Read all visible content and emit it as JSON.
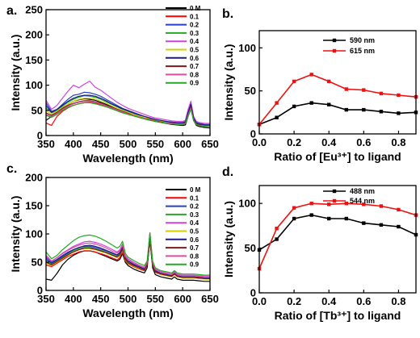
{
  "chart_data": [
    {
      "id": "a",
      "type": "line",
      "panel_label": "a.",
      "xlabel": "Wavelength (nm)",
      "ylabel": "Intensity (a.u.)",
      "xlim": [
        350,
        650
      ],
      "ylim": [
        0,
        250
      ],
      "xticks": [
        350,
        400,
        450,
        500,
        550,
        600,
        650
      ],
      "yticks": [
        0,
        50,
        100,
        150,
        200,
        250
      ],
      "legend_position": "top-right",
      "x": [
        350,
        360,
        370,
        380,
        390,
        400,
        410,
        420,
        430,
        440,
        450,
        460,
        470,
        480,
        490,
        500,
        510,
        520,
        530,
        540,
        550,
        560,
        570,
        580,
        590,
        600,
        605,
        610,
        615,
        620,
        625,
        630,
        640,
        650
      ],
      "series": [
        {
          "name": "0 M",
          "color": "#000000",
          "values": [
            30,
            38,
            45,
            54,
            62,
            68,
            71,
            73,
            72,
            70,
            66,
            62,
            57,
            52,
            48,
            44,
            40,
            37,
            34,
            31,
            28,
            26,
            24,
            22,
            21,
            20,
            21,
            38,
            55,
            30,
            20,
            18,
            16,
            15
          ]
        },
        {
          "name": "0.1",
          "color": "#ff0000",
          "values": [
            25,
            20,
            38,
            48,
            55,
            60,
            63,
            65,
            66,
            64,
            62,
            58,
            54,
            50,
            46,
            42,
            39,
            36,
            33,
            31,
            28,
            26,
            24,
            23,
            22,
            22,
            24,
            40,
            58,
            32,
            22,
            20,
            19,
            20
          ]
        },
        {
          "name": "0.2",
          "color": "#2a3fc8",
          "values": [
            65,
            48,
            52,
            62,
            72,
            80,
            82,
            86,
            85,
            82,
            78,
            72,
            66,
            60,
            54,
            50,
            46,
            42,
            38,
            35,
            32,
            30,
            28,
            27,
            26,
            26,
            28,
            48,
            65,
            36,
            26,
            24,
            22,
            22
          ]
        },
        {
          "name": "0.3",
          "color": "#2aa52a",
          "values": [
            55,
            45,
            50,
            58,
            66,
            72,
            76,
            79,
            78,
            76,
            72,
            67,
            62,
            57,
            52,
            48,
            44,
            40,
            37,
            34,
            31,
            29,
            27,
            26,
            25,
            25,
            27,
            44,
            62,
            34,
            25,
            23,
            21,
            21
          ]
        },
        {
          "name": "0.4",
          "color": "#cc44dd",
          "values": [
            70,
            52,
            60,
            74,
            88,
            100,
            95,
            102,
            108,
            96,
            90,
            82,
            74,
            66,
            60,
            54,
            50,
            46,
            42,
            38,
            35,
            33,
            31,
            29,
            28,
            28,
            30,
            52,
            68,
            38,
            28,
            26,
            24,
            24
          ]
        },
        {
          "name": "0.5",
          "color": "#d1d100",
          "values": [
            50,
            42,
            48,
            56,
            62,
            68,
            72,
            74,
            74,
            72,
            68,
            64,
            59,
            54,
            50,
            46,
            42,
            39,
            36,
            33,
            30,
            28,
            26,
            25,
            24,
            24,
            26,
            42,
            60,
            33,
            24,
            22,
            20,
            20
          ]
        },
        {
          "name": "0.6",
          "color": "#1a1a8c",
          "values": [
            60,
            46,
            52,
            60,
            68,
            74,
            78,
            80,
            80,
            78,
            74,
            69,
            63,
            58,
            53,
            49,
            45,
            41,
            38,
            35,
            32,
            30,
            28,
            26,
            25,
            25,
            27,
            46,
            62,
            35,
            25,
            23,
            21,
            21
          ]
        },
        {
          "name": "0.7",
          "color": "#7a1a1a",
          "values": [
            45,
            40,
            46,
            54,
            60,
            64,
            67,
            69,
            69,
            67,
            64,
            60,
            56,
            52,
            48,
            44,
            40,
            37,
            34,
            32,
            29,
            27,
            25,
            24,
            23,
            23,
            25,
            40,
            56,
            31,
            23,
            21,
            19,
            19
          ]
        },
        {
          "name": "0.8",
          "color": "#e04aa0",
          "values": [
            42,
            38,
            44,
            52,
            58,
            63,
            66,
            68,
            68,
            66,
            63,
            59,
            55,
            51,
            47,
            43,
            40,
            37,
            34,
            31,
            28,
            26,
            25,
            24,
            23,
            23,
            24,
            40,
            54,
            30,
            22,
            20,
            19,
            19
          ]
        },
        {
          "name": "0.9",
          "color": "#22aa22",
          "values": [
            40,
            36,
            42,
            50,
            56,
            60,
            63,
            65,
            65,
            63,
            60,
            57,
            53,
            49,
            45,
            42,
            39,
            36,
            33,
            30,
            28,
            26,
            24,
            23,
            22,
            22,
            24,
            38,
            52,
            29,
            22,
            20,
            18,
            18
          ]
        }
      ]
    },
    {
      "id": "b",
      "type": "line",
      "panel_label": "b.",
      "xlabel": "Ratio of [Eu³⁺] to ligand",
      "ylabel": "Intensity (a.u.)",
      "xlim": [
        0,
        0.9
      ],
      "ylim": [
        0,
        120
      ],
      "xticks": [
        0.0,
        0.2,
        0.4,
        0.6,
        0.8
      ],
      "xtick_labels": [
        "0.0",
        "0.2",
        "0.4",
        "0.6",
        "0.8"
      ],
      "yticks": [
        0,
        50,
        100
      ],
      "legend_position": "top-right",
      "x": [
        0.0,
        0.1,
        0.2,
        0.3,
        0.4,
        0.5,
        0.6,
        0.7,
        0.8,
        0.9
      ],
      "series": [
        {
          "name": "590 nm",
          "color": "#000000",
          "values": [
            11,
            19,
            32,
            36,
            34,
            28,
            28,
            26,
            24,
            25
          ]
        },
        {
          "name": "615 nm",
          "color": "#ee1111",
          "values": [
            11,
            36,
            61,
            69,
            61,
            52,
            51,
            47,
            45,
            43
          ]
        }
      ]
    },
    {
      "id": "c",
      "type": "line",
      "panel_label": "c.",
      "xlabel": "Wavelength (nm)",
      "ylabel": "Intensity (a.u.)",
      "xlim": [
        350,
        650
      ],
      "ylim": [
        0,
        200
      ],
      "xticks": [
        350,
        400,
        450,
        500,
        550,
        600,
        650
      ],
      "yticks": [
        0,
        50,
        100,
        150,
        200
      ],
      "legend_position": "top-right",
      "x": [
        350,
        360,
        370,
        380,
        390,
        400,
        410,
        420,
        430,
        440,
        450,
        460,
        470,
        480,
        485,
        490,
        495,
        500,
        510,
        520,
        530,
        535,
        540,
        545,
        550,
        560,
        570,
        580,
        585,
        590,
        600,
        610,
        620,
        630,
        640,
        650
      ],
      "series": [
        {
          "name": "0 M",
          "color": "#000000",
          "values": [
            20,
            18,
            30,
            45,
            55,
            62,
            67,
            70,
            70,
            68,
            64,
            60,
            56,
            52,
            55,
            65,
            50,
            44,
            38,
            34,
            31,
            40,
            88,
            40,
            28,
            24,
            22,
            20,
            24,
            20,
            18,
            18,
            18,
            17,
            16,
            16
          ]
        },
        {
          "name": "0.1",
          "color": "#ff0000",
          "values": [
            45,
            42,
            48,
            54,
            60,
            64,
            68,
            70,
            70,
            68,
            65,
            62,
            58,
            54,
            58,
            70,
            52,
            47,
            42,
            38,
            35,
            45,
            98,
            45,
            32,
            28,
            26,
            24,
            28,
            24,
            22,
            22,
            22,
            21,
            20,
            20
          ]
        },
        {
          "name": "0.2",
          "color": "#2a3fc8",
          "values": [
            58,
            50,
            55,
            62,
            68,
            72,
            76,
            78,
            78,
            76,
            73,
            70,
            66,
            62,
            66,
            76,
            58,
            52,
            47,
            42,
            38,
            48,
            100,
            48,
            35,
            30,
            28,
            26,
            30,
            26,
            24,
            24,
            24,
            23,
            22,
            22
          ]
        },
        {
          "name": "0.3",
          "color": "#2aa52a",
          "values": [
            52,
            46,
            52,
            58,
            64,
            70,
            74,
            76,
            76,
            74,
            71,
            68,
            64,
            60,
            64,
            74,
            56,
            50,
            45,
            40,
            37,
            46,
            96,
            46,
            34,
            29,
            27,
            25,
            29,
            25,
            23,
            23,
            23,
            22,
            21,
            21
          ]
        },
        {
          "name": "0.4",
          "color": "#cc44dd",
          "values": [
            62,
            52,
            58,
            66,
            72,
            78,
            82,
            86,
            87,
            85,
            82,
            78,
            73,
            68,
            72,
            82,
            62,
            56,
            50,
            45,
            41,
            50,
            102,
            50,
            38,
            33,
            31,
            29,
            33,
            29,
            27,
            27,
            27,
            26,
            25,
            25
          ]
        },
        {
          "name": "0.5",
          "color": "#d1d100",
          "values": [
            48,
            44,
            50,
            56,
            62,
            68,
            72,
            74,
            74,
            72,
            69,
            66,
            62,
            58,
            62,
            72,
            54,
            48,
            43,
            39,
            36,
            45,
            94,
            45,
            33,
            28,
            26,
            24,
            28,
            24,
            22,
            22,
            22,
            21,
            20,
            20
          ]
        },
        {
          "name": "0.6",
          "color": "#1a1a8c",
          "values": [
            55,
            48,
            54,
            60,
            66,
            72,
            76,
            79,
            80,
            78,
            75,
            71,
            67,
            63,
            67,
            77,
            58,
            52,
            46,
            42,
            38,
            47,
            99,
            47,
            35,
            30,
            28,
            26,
            30,
            26,
            24,
            24,
            24,
            23,
            22,
            22
          ]
        },
        {
          "name": "0.7",
          "color": "#7a1a1a",
          "values": [
            50,
            45,
            51,
            57,
            63,
            68,
            72,
            75,
            75,
            73,
            70,
            67,
            63,
            59,
            63,
            73,
            55,
            49,
            44,
            40,
            36,
            45,
            95,
            45,
            33,
            29,
            27,
            25,
            29,
            25,
            23,
            23,
            23,
            22,
            21,
            21
          ]
        },
        {
          "name": "0.8",
          "color": "#e04aa0",
          "values": [
            60,
            52,
            58,
            65,
            71,
            76,
            80,
            83,
            84,
            82,
            79,
            75,
            70,
            66,
            70,
            80,
            60,
            54,
            48,
            44,
            40,
            49,
            101,
            49,
            37,
            32,
            30,
            28,
            32,
            28,
            26,
            26,
            26,
            25,
            24,
            24
          ]
        },
        {
          "name": "0.9",
          "color": "#22aa22",
          "values": [
            68,
            56,
            62,
            72,
            80,
            88,
            94,
            97,
            98,
            96,
            92,
            87,
            81,
            75,
            78,
            87,
            66,
            59,
            53,
            48,
            44,
            52,
            102,
            52,
            40,
            35,
            33,
            31,
            35,
            31,
            29,
            29,
            29,
            28,
            27,
            27
          ]
        }
      ]
    },
    {
      "id": "d",
      "type": "line",
      "panel_label": "d.",
      "xlabel": "Ratio of [Tb³⁺] to ligand",
      "ylabel": "Intensity (a.u.)",
      "xlim": [
        0,
        0.9
      ],
      "ylim": [
        0,
        120
      ],
      "xticks": [
        0.0,
        0.2,
        0.4,
        0.6,
        0.8
      ],
      "xtick_labels": [
        "0.0",
        "0.2",
        "0.4",
        "0.6",
        "0.8"
      ],
      "yticks": [
        0,
        50,
        100
      ],
      "legend_position": "top-right",
      "x": [
        0.0,
        0.1,
        0.2,
        0.3,
        0.4,
        0.5,
        0.6,
        0.7,
        0.8,
        0.9
      ],
      "series": [
        {
          "name": "488 nm",
          "color": "#000000",
          "values": [
            48,
            60,
            83,
            87,
            83,
            83,
            78,
            76,
            74,
            65
          ]
        },
        {
          "name": "544 nm",
          "color": "#ee1111",
          "values": [
            27,
            72,
            95,
            100,
            99,
            100,
            99,
            97,
            93,
            87
          ]
        }
      ]
    }
  ]
}
